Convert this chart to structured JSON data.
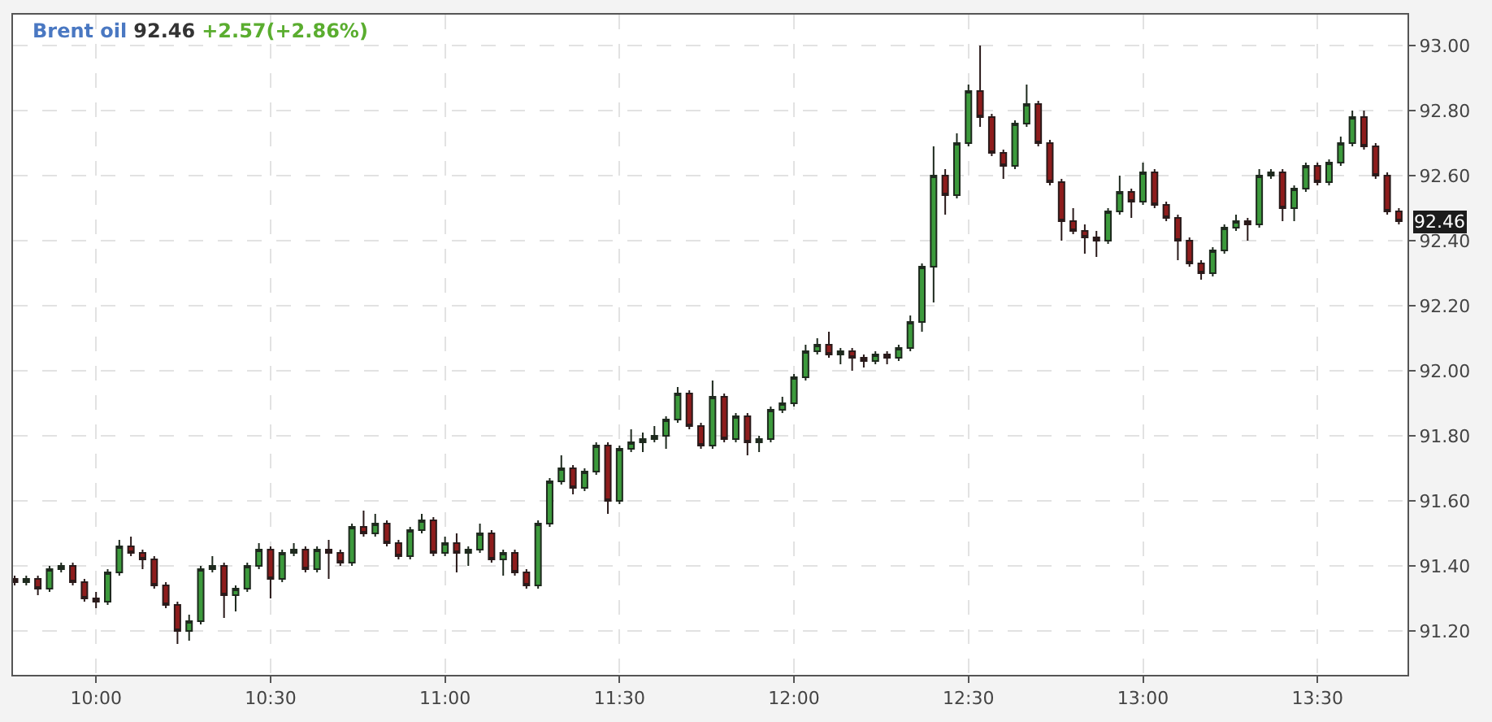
{
  "chart_data": {
    "type": "candlestick",
    "title": "Brent oil",
    "annotations": [
      "92.46",
      "+2.57(+2.86%)",
      "92.46"
    ],
    "x": [
      9.7667,
      9.8,
      9.8333,
      9.8667,
      9.9,
      9.9333,
      9.9667,
      10,
      10.0333,
      10.0667,
      10.1,
      10.1333,
      10.1667,
      10.2,
      10.2333,
      10.2667,
      10.3,
      10.3333,
      10.3667,
      10.4,
      10.4333,
      10.4667,
      10.5,
      10.5333,
      10.5667,
      10.6,
      10.6333,
      10.6667,
      10.7,
      10.7333,
      10.7667,
      10.8,
      10.8333,
      10.8667,
      10.9,
      10.9333,
      10.9667,
      11,
      11.0333,
      11.0667,
      11.1,
      11.1333,
      11.1667,
      11.2,
      11.2333,
      11.2667,
      11.3,
      11.3333,
      11.3667,
      11.4,
      11.4333,
      11.4667,
      11.5,
      11.5333,
      11.5667,
      11.6,
      11.6333,
      11.6667,
      11.7,
      11.7333,
      11.7667,
      11.8,
      11.8333,
      11.8667,
      11.9,
      11.9333,
      11.9667,
      12,
      12.0333,
      12.0667,
      12.1,
      12.1333,
      12.1667,
      12.2,
      12.2333,
      12.2667,
      12.3,
      12.3333,
      12.3667,
      12.4,
      12.4333,
      12.4667,
      12.5,
      12.5333,
      12.5667,
      12.6,
      12.6333,
      12.6667,
      12.7,
      12.7333,
      12.7667,
      12.8,
      12.8333,
      12.8667,
      12.9,
      12.9333,
      12.9667,
      13,
      13.0333,
      13.0667,
      13.1,
      13.1333,
      13.1667,
      13.2,
      13.2333,
      13.2667,
      13.3,
      13.3333,
      13.3667,
      13.4,
      13.4333,
      13.4667,
      13.5,
      13.5333,
      13.5667,
      13.6,
      13.6333,
      13.6667,
      13.7,
      13.7333
    ],
    "ohlc": [
      [
        91.36,
        91.37,
        91.34,
        91.35
      ],
      [
        91.35,
        91.37,
        91.34,
        91.36
      ],
      [
        91.36,
        91.37,
        91.31,
        91.33
      ],
      [
        91.33,
        91.4,
        91.32,
        91.39
      ],
      [
        91.39,
        91.41,
        91.38,
        91.4
      ],
      [
        91.4,
        91.41,
        91.34,
        91.35
      ],
      [
        91.35,
        91.36,
        91.29,
        91.3
      ],
      [
        91.3,
        91.32,
        91.27,
        91.29
      ],
      [
        91.29,
        91.39,
        91.28,
        91.38
      ],
      [
        91.38,
        91.48,
        91.37,
        91.46
      ],
      [
        91.46,
        91.49,
        91.43,
        91.44
      ],
      [
        91.44,
        91.45,
        91.39,
        91.42
      ],
      [
        91.42,
        91.43,
        91.33,
        91.34
      ],
      [
        91.34,
        91.35,
        91.27,
        91.28
      ],
      [
        91.28,
        91.29,
        91.16,
        91.2
      ],
      [
        91.2,
        91.25,
        91.17,
        91.23
      ],
      [
        91.23,
        91.4,
        91.22,
        91.39
      ],
      [
        91.39,
        91.43,
        91.38,
        91.4
      ],
      [
        91.4,
        91.41,
        91.24,
        91.31
      ],
      [
        91.31,
        91.34,
        91.26,
        91.33
      ],
      [
        91.33,
        91.41,
        91.32,
        91.4
      ],
      [
        91.4,
        91.47,
        91.39,
        91.45
      ],
      [
        91.45,
        91.46,
        91.3,
        91.36
      ],
      [
        91.36,
        91.45,
        91.35,
        91.44
      ],
      [
        91.44,
        91.47,
        91.43,
        91.45
      ],
      [
        91.45,
        91.46,
        91.38,
        91.39
      ],
      [
        91.39,
        91.46,
        91.38,
        91.45
      ],
      [
        91.45,
        91.48,
        91.36,
        91.44
      ],
      [
        91.44,
        91.45,
        91.4,
        91.41
      ],
      [
        91.41,
        91.53,
        91.4,
        91.52
      ],
      [
        91.52,
        91.57,
        91.49,
        91.5
      ],
      [
        91.5,
        91.56,
        91.49,
        91.53
      ],
      [
        91.53,
        91.54,
        91.46,
        91.47
      ],
      [
        91.47,
        91.48,
        91.42,
        91.43
      ],
      [
        91.43,
        91.52,
        91.42,
        91.51
      ],
      [
        91.51,
        91.56,
        91.5,
        91.54
      ],
      [
        91.54,
        91.55,
        91.43,
        91.44
      ],
      [
        91.44,
        91.49,
        91.43,
        91.47
      ],
      [
        91.47,
        91.5,
        91.38,
        91.44
      ],
      [
        91.44,
        91.46,
        91.4,
        91.45
      ],
      [
        91.45,
        91.53,
        91.44,
        91.5
      ],
      [
        91.5,
        91.51,
        91.41,
        91.42
      ],
      [
        91.42,
        91.45,
        91.37,
        91.44
      ],
      [
        91.44,
        91.45,
        91.37,
        91.38
      ],
      [
        91.38,
        91.39,
        91.33,
        91.34
      ],
      [
        91.34,
        91.54,
        91.33,
        91.53
      ],
      [
        91.53,
        91.67,
        91.52,
        91.66
      ],
      [
        91.66,
        91.74,
        91.65,
        91.7
      ],
      [
        91.7,
        91.71,
        91.62,
        91.64
      ],
      [
        91.64,
        91.7,
        91.63,
        91.69
      ],
      [
        91.69,
        91.78,
        91.68,
        91.77
      ],
      [
        91.77,
        91.78,
        91.56,
        91.6
      ],
      [
        91.6,
        91.77,
        91.59,
        91.76
      ],
      [
        91.76,
        91.82,
        91.75,
        91.78
      ],
      [
        91.78,
        91.81,
        91.75,
        91.79
      ],
      [
        91.79,
        91.83,
        91.78,
        91.8
      ],
      [
        91.8,
        91.86,
        91.76,
        91.85
      ],
      [
        91.85,
        91.95,
        91.84,
        91.93
      ],
      [
        91.93,
        91.94,
        91.82,
        91.83
      ],
      [
        91.83,
        91.84,
        91.76,
        91.77
      ],
      [
        91.77,
        91.97,
        91.76,
        91.92
      ],
      [
        91.92,
        91.93,
        91.78,
        91.79
      ],
      [
        91.79,
        91.87,
        91.78,
        91.86
      ],
      [
        91.86,
        91.87,
        91.74,
        91.78
      ],
      [
        91.78,
        91.8,
        91.75,
        91.79
      ],
      [
        91.79,
        91.89,
        91.78,
        91.88
      ],
      [
        91.88,
        91.92,
        91.87,
        91.9
      ],
      [
        91.9,
        91.99,
        91.89,
        91.98
      ],
      [
        91.98,
        92.08,
        91.97,
        92.06
      ],
      [
        92.06,
        92.1,
        92.05,
        92.08
      ],
      [
        92.08,
        92.12,
        92.04,
        92.05
      ],
      [
        92.05,
        92.07,
        92.02,
        92.06
      ],
      [
        92.06,
        92.07,
        92.0,
        92.04
      ],
      [
        92.04,
        92.05,
        92.01,
        92.03
      ],
      [
        92.03,
        92.06,
        92.02,
        92.05
      ],
      [
        92.05,
        92.06,
        92.02,
        92.04
      ],
      [
        92.04,
        92.08,
        92.03,
        92.07
      ],
      [
        92.07,
        92.17,
        92.06,
        92.15
      ],
      [
        92.15,
        92.33,
        92.12,
        92.32
      ],
      [
        92.32,
        92.69,
        92.21,
        92.6
      ],
      [
        92.6,
        92.62,
        92.48,
        92.54
      ],
      [
        92.54,
        92.73,
        92.53,
        92.7
      ],
      [
        92.7,
        92.88,
        92.69,
        92.86
      ],
      [
        92.86,
        93.0,
        92.75,
        92.78
      ],
      [
        92.78,
        92.79,
        92.66,
        92.67
      ],
      [
        92.67,
        92.68,
        92.59,
        92.63
      ],
      [
        92.63,
        92.77,
        92.62,
        92.76
      ],
      [
        92.76,
        92.88,
        92.75,
        92.82
      ],
      [
        92.82,
        92.83,
        92.69,
        92.7
      ],
      [
        92.7,
        92.71,
        92.57,
        92.58
      ],
      [
        92.58,
        92.59,
        92.4,
        92.46
      ],
      [
        92.46,
        92.5,
        92.42,
        92.43
      ],
      [
        92.43,
        92.45,
        92.36,
        92.41
      ],
      [
        92.41,
        92.43,
        92.35,
        92.4
      ],
      [
        92.4,
        92.5,
        92.39,
        92.49
      ],
      [
        92.49,
        92.6,
        92.48,
        92.55
      ],
      [
        92.55,
        92.56,
        92.47,
        92.52
      ],
      [
        92.52,
        92.64,
        92.51,
        92.61
      ],
      [
        92.61,
        92.62,
        92.5,
        92.51
      ],
      [
        92.51,
        92.52,
        92.46,
        92.47
      ],
      [
        92.47,
        92.48,
        92.34,
        92.4
      ],
      [
        92.4,
        92.41,
        92.32,
        92.33
      ],
      [
        92.33,
        92.34,
        92.28,
        92.3
      ],
      [
        92.3,
        92.38,
        92.29,
        92.37
      ],
      [
        92.37,
        92.45,
        92.36,
        92.44
      ],
      [
        92.44,
        92.48,
        92.43,
        92.46
      ],
      [
        92.46,
        92.47,
        92.4,
        92.45
      ],
      [
        92.45,
        92.62,
        92.44,
        92.6
      ],
      [
        92.6,
        92.62,
        92.59,
        92.61
      ],
      [
        92.61,
        92.62,
        92.46,
        92.5
      ],
      [
        92.5,
        92.57,
        92.46,
        92.56
      ],
      [
        92.56,
        92.64,
        92.55,
        92.63
      ],
      [
        92.63,
        92.64,
        92.57,
        92.58
      ],
      [
        92.58,
        92.65,
        92.57,
        92.64
      ],
      [
        92.64,
        92.72,
        92.63,
        92.7
      ],
      [
        92.7,
        92.8,
        92.69,
        92.78
      ],
      [
        92.78,
        92.8,
        92.68,
        92.69
      ],
      [
        92.69,
        92.7,
        92.59,
        92.6
      ],
      [
        92.6,
        92.61,
        92.48,
        92.49
      ],
      [
        92.49,
        92.5,
        92.45,
        92.46
      ]
    ],
    "xlim": [
      9.762,
      13.758
    ],
    "xticks": [
      {
        "value": 10,
        "label": "10:00"
      },
      {
        "value": 10.5,
        "label": "10:30"
      },
      {
        "value": 11,
        "label": "11:00"
      },
      {
        "value": 11.5,
        "label": "11:30"
      },
      {
        "value": 12,
        "label": "12:00"
      },
      {
        "value": 12.5,
        "label": "12:30"
      },
      {
        "value": 13,
        "label": "13:00"
      },
      {
        "value": 13.5,
        "label": "13:30"
      }
    ],
    "ylim": [
      91.065,
      93.095
    ],
    "yticks": [
      {
        "value": 91.2,
        "label": "91.20"
      },
      {
        "value": 91.4,
        "label": "91.40"
      },
      {
        "value": 91.6,
        "label": "91.60"
      },
      {
        "value": 91.8,
        "label": "91.80"
      },
      {
        "value": 92,
        "label": "92.00"
      },
      {
        "value": 92.2,
        "label": "92.20"
      },
      {
        "value": 92.4,
        "label": "92.40"
      },
      {
        "value": 92.6,
        "label": "92.60"
      },
      {
        "value": 92.8,
        "label": "92.80"
      },
      {
        "value": 93,
        "label": "93.00"
      }
    ],
    "grid": true
  }
}
